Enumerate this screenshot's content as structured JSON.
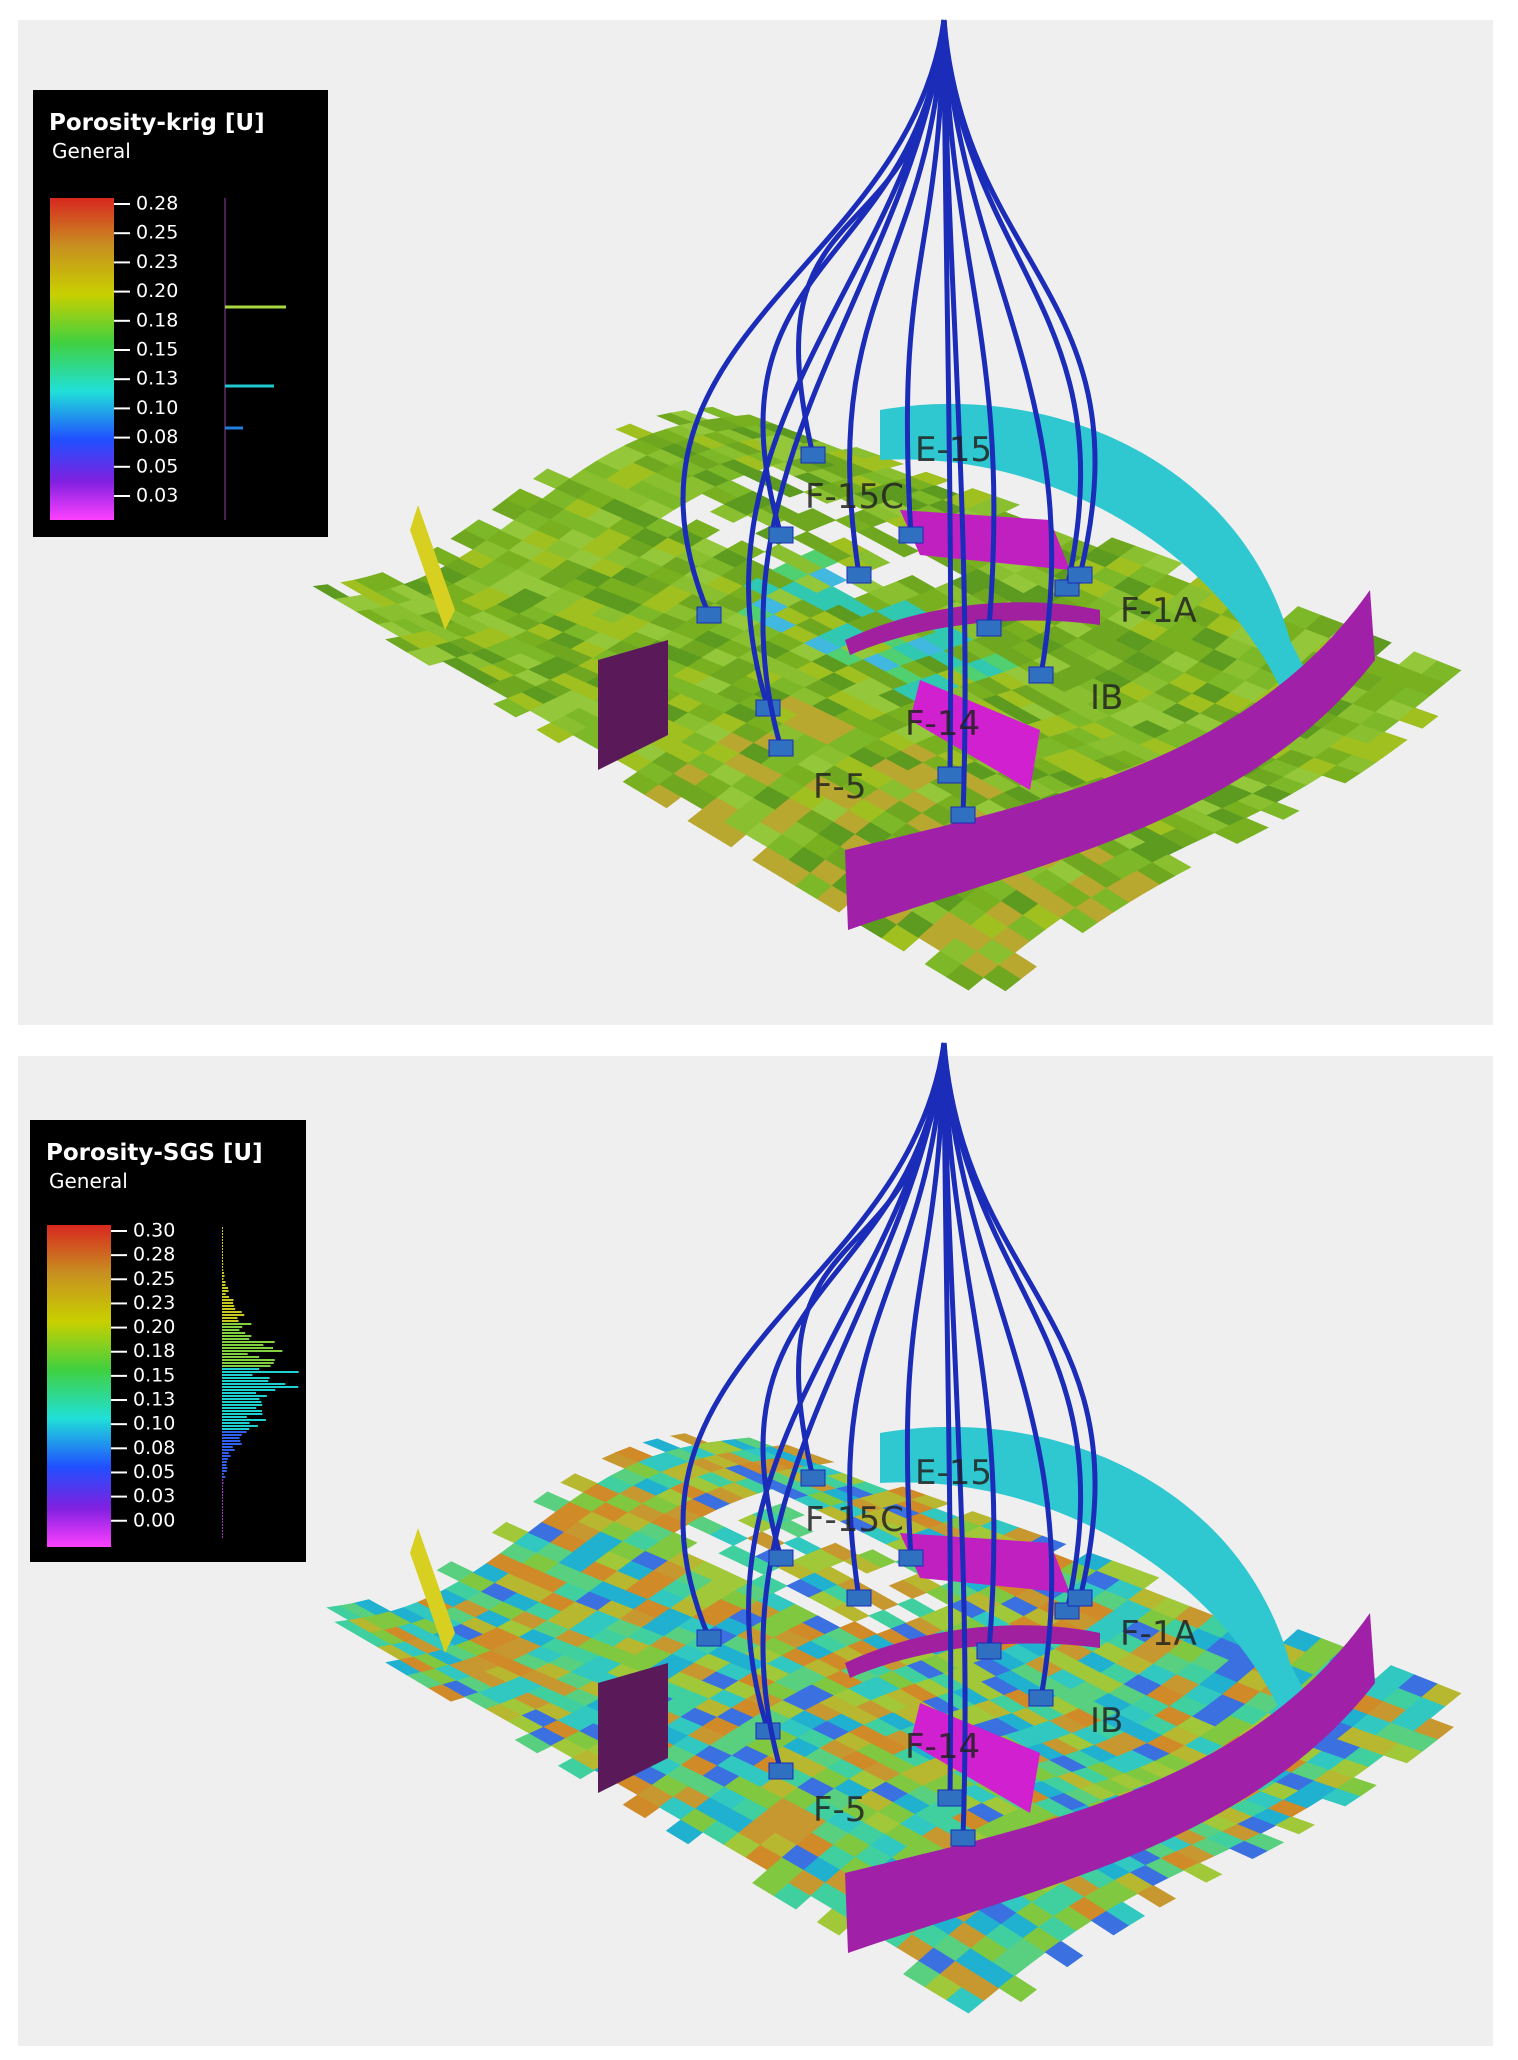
{
  "panels": [
    {
      "legend": {
        "title": "Porosity-krig [U]",
        "subtitle": "General",
        "ticks": [
          "0.28",
          "0.25",
          "0.23",
          "0.20",
          "0.18",
          "0.15",
          "0.13",
          "0.10",
          "0.08",
          "0.05",
          "0.03"
        ]
      },
      "well_labels": [
        "F-15C",
        "E-15",
        "F-1A",
        "IB",
        "F-14",
        "F-5"
      ]
    },
    {
      "legend": {
        "title": "Porosity-SGS [U]",
        "subtitle": "General",
        "ticks": [
          "0.30",
          "0.28",
          "0.25",
          "0.23",
          "0.20",
          "0.18",
          "0.15",
          "0.13",
          "0.10",
          "0.08",
          "0.05",
          "0.03",
          "0.00"
        ]
      },
      "well_labels": [
        "F-15C",
        "E-15",
        "F-1A",
        "IB",
        "F-14",
        "F-5"
      ]
    }
  ]
}
